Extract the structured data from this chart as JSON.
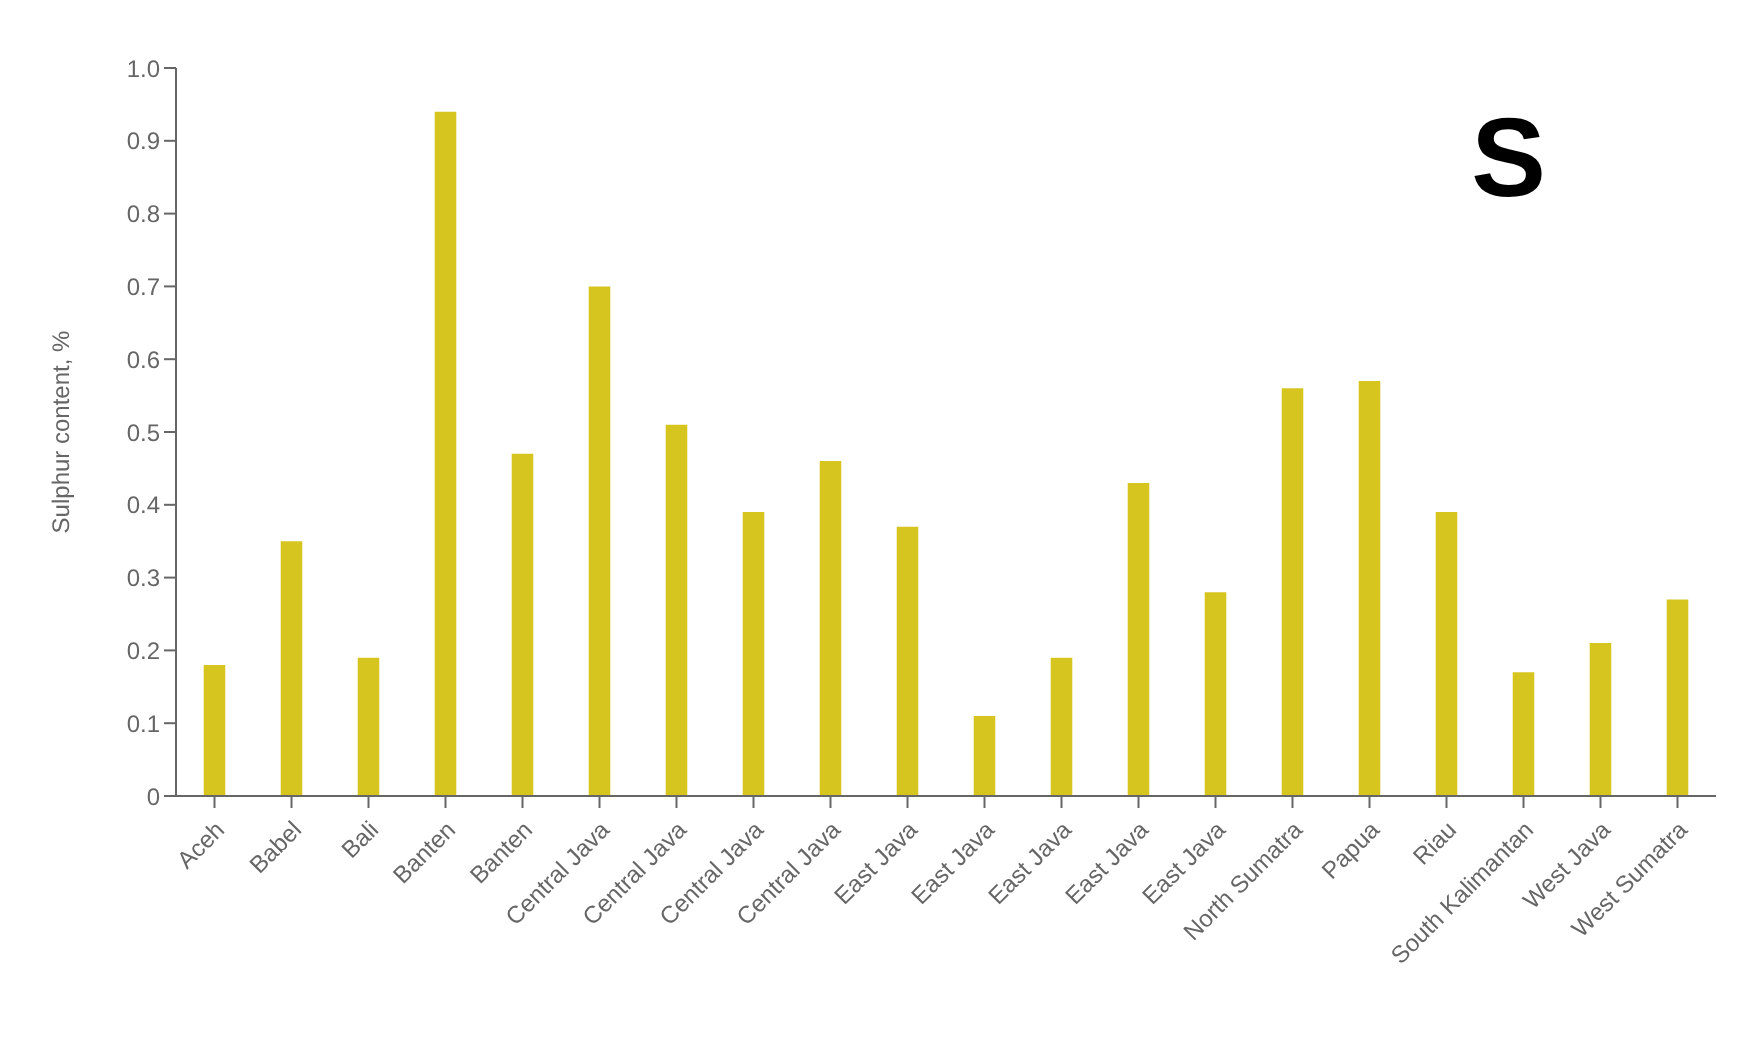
{
  "chart_data": {
    "type": "bar",
    "ylabel": "Sulphur content, %",
    "categories": [
      "Aceh",
      "Babel",
      "Bali",
      "Banten",
      "Banten",
      "Central Java",
      "Central Java",
      "Central Java",
      "Central Java",
      "East Java",
      "East Java",
      "East Java",
      "East Java",
      "East Java",
      "North Sumatra",
      "Papua",
      "Riau",
      "South Kalimantan",
      "West Java",
      "West Sumatra"
    ],
    "values": [
      0.18,
      0.35,
      0.19,
      0.94,
      0.47,
      0.7,
      0.51,
      0.39,
      0.46,
      0.37,
      0.11,
      0.19,
      0.43,
      0.28,
      0.56,
      0.57,
      0.39,
      0.17,
      0.21,
      0.27
    ],
    "color": "#d6c41f",
    "ylim": [
      0,
      1.0
    ],
    "yticks": [
      0,
      {
        "value": 0.1,
        "label": "0.1"
      },
      {
        "value": 0.2,
        "label": "0.2"
      },
      {
        "value": 0.3,
        "label": "0.3"
      },
      {
        "value": 0.4,
        "label": "0.4"
      },
      {
        "value": 0.5,
        "label": "0.5"
      },
      {
        "value": 0.6,
        "label": "0.6"
      },
      {
        "value": 0.7,
        "label": "0.7"
      },
      {
        "value": 0.8,
        "label": "0.8"
      },
      {
        "value": 0.9,
        "label": "0.9"
      },
      {
        "value": 1.0,
        "label": "1.0"
      }
    ],
    "grid": false,
    "annotations": [
      "S"
    ]
  }
}
